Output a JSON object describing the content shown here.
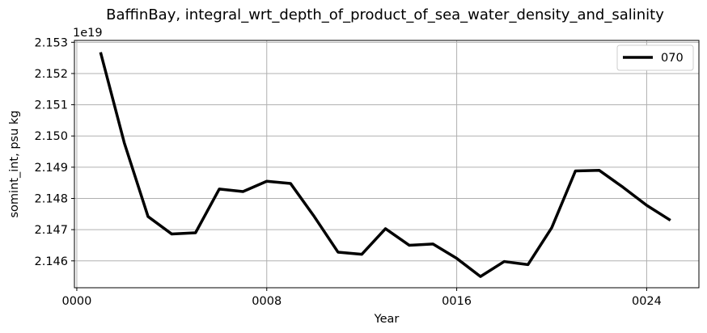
{
  "chart_data": {
    "type": "line",
    "title": "BaffinBay, integral_wrt_depth_of_product_of_sea_water_density_and_salinity",
    "xlabel": "Year",
    "ylabel": "somint_int, psu kg",
    "offset_label": "1e19",
    "xlim": [
      -0.1,
      26.2
    ],
    "ylim": [
      2.14514,
      2.15306
    ],
    "x_ticks": [
      {
        "value": 0,
        "label": "0000"
      },
      {
        "value": 8,
        "label": "0008"
      },
      {
        "value": 16,
        "label": "0016"
      },
      {
        "value": 24,
        "label": "0024"
      }
    ],
    "y_ticks": [
      {
        "value": 2.146,
        "label": "2.146"
      },
      {
        "value": 2.147,
        "label": "2.147"
      },
      {
        "value": 2.148,
        "label": "2.148"
      },
      {
        "value": 2.149,
        "label": "2.149"
      },
      {
        "value": 2.15,
        "label": "2.150"
      },
      {
        "value": 2.151,
        "label": "2.151"
      },
      {
        "value": 2.152,
        "label": "2.152"
      },
      {
        "value": 2.153,
        "label": "2.153"
      }
    ],
    "grid": true,
    "legend_position": "top-right",
    "series": [
      {
        "name": "070",
        "color": "#000000",
        "x": [
          1,
          2,
          3,
          4,
          5,
          6,
          7,
          8,
          9,
          10,
          11,
          12,
          13,
          14,
          15,
          16,
          17,
          18,
          19,
          20,
          21,
          22,
          23,
          24,
          25
        ],
        "values": [
          2.15268,
          2.14978,
          2.14742,
          2.14686,
          2.1469,
          2.1483,
          2.14822,
          2.14855,
          2.14848,
          2.14742,
          2.14628,
          2.14621,
          2.14703,
          2.1465,
          2.14654,
          2.14608,
          2.1455,
          2.14598,
          2.14588,
          2.14706,
          2.14888,
          2.1489,
          2.14836,
          2.14778,
          2.1473
        ]
      }
    ]
  }
}
